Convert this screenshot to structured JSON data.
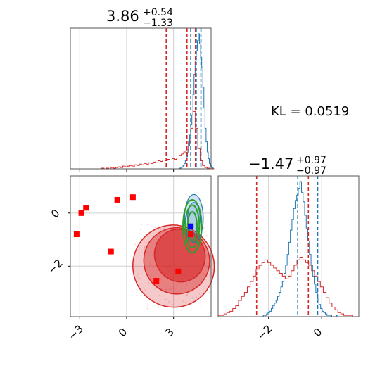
{
  "chart_data": {
    "type": "corner",
    "panels": [
      {
        "id": "top-left-histogram",
        "type": "histogram",
        "title": {
          "median": "3.86",
          "plus": "+0.54",
          "minus": "−1.33"
        },
        "x_range": [
          -3.6,
          5.4
        ],
        "x_ticks": [
          -3,
          0,
          3
        ],
        "vertical_lines": {
          "red": [
            2.53,
            3.86,
            4.4
          ],
          "blue": [
            4.1,
            4.45,
            4.75
          ]
        },
        "red_hist": {
          "x_edges_start": -1.6,
          "bin_width": 0.15,
          "counts": [
            1,
            0,
            1,
            0,
            2,
            1,
            2,
            3,
            2,
            4,
            3,
            4,
            5,
            4,
            6,
            5,
            7,
            6,
            8,
            7,
            9,
            8,
            10,
            9,
            12,
            11,
            13,
            12,
            14,
            13,
            15,
            14,
            16,
            20,
            22,
            25,
            28,
            40,
            60,
            85,
            60,
            30,
            12,
            5,
            2,
            1,
            0,
            0
          ]
        },
        "blue_hist": {
          "x_edges_start": 3.4,
          "bin_width": 0.07,
          "counts": [
            1,
            2,
            3,
            5,
            8,
            12,
            18,
            25,
            35,
            50,
            65,
            80,
            110,
            140,
            160,
            175,
            190,
            200,
            185,
            165,
            150,
            120,
            90,
            60,
            40,
            25,
            15,
            8,
            4,
            2,
            1
          ]
        }
      },
      {
        "id": "top-right-annotation",
        "type": "text",
        "text": "KL = 0.0519"
      },
      {
        "id": "bottom-left-scatter",
        "type": "scatter-contour",
        "x_range": [
          -3.6,
          5.4
        ],
        "y_range": [
          -3.9,
          1.4
        ],
        "x_ticks": [
          "−3",
          "0",
          "3"
        ],
        "y_ticks": [
          "0",
          "−2"
        ],
        "x_tick_values": [
          -3,
          0,
          3
        ],
        "y_tick_values": [
          0,
          -2
        ],
        "red_points": [
          {
            "x": -3.2,
            "y": -0.8
          },
          {
            "x": -2.9,
            "y": 0.0
          },
          {
            "x": -2.6,
            "y": 0.2
          },
          {
            "x": -1.0,
            "y": -1.45
          },
          {
            "x": -0.6,
            "y": 0.5
          },
          {
            "x": 0.4,
            "y": 0.6
          },
          {
            "x": 1.9,
            "y": -2.55
          },
          {
            "x": 3.3,
            "y": -2.2
          },
          {
            "x": 4.1,
            "y": -0.8
          }
        ],
        "blue_point": {
          "x": 4.1,
          "y": -0.5
        },
        "red_contours": [
          {
            "cx": 3.0,
            "cy": -2.0,
            "rx": 2.6,
            "ry": 1.55,
            "opacity": 0.25
          },
          {
            "cx": 3.2,
            "cy": -1.8,
            "rx": 2.1,
            "ry": 1.25,
            "opacity": 0.45
          },
          {
            "cx": 3.4,
            "cy": -1.6,
            "rx": 1.6,
            "ry": 1.0,
            "opacity": 0.6
          }
        ],
        "green_contours": [
          {
            "cx": 4.2,
            "cy": -0.5,
            "rx": 0.6,
            "ry": 1.0
          },
          {
            "cx": 4.2,
            "cy": -0.5,
            "rx": 0.45,
            "ry": 0.8
          },
          {
            "cx": 4.2,
            "cy": -0.5,
            "rx": 0.3,
            "ry": 0.55
          }
        ],
        "blue_contours": [
          {
            "cx": 4.3,
            "cy": -0.2,
            "rx": 0.6,
            "ry": 0.9
          },
          {
            "cx": 4.3,
            "cy": -0.2,
            "rx": 0.4,
            "ry": 0.6
          }
        ]
      },
      {
        "id": "bottom-right-histogram",
        "type": "histogram",
        "title": {
          "median": "−1.47",
          "plus": "+0.97",
          "minus": "−0.97"
        },
        "x_range": [
          -3.9,
          1.4
        ],
        "x_ticks": [
          "−2",
          "0"
        ],
        "x_tick_values": [
          -2,
          0
        ],
        "vertical_lines": {
          "red": [
            -2.45,
            -0.5
          ],
          "blue": [
            -0.9,
            -0.15
          ]
        },
        "red_hist": {
          "x_edges_start": -3.9,
          "bin_width": 0.11,
          "counts": [
            1,
            1,
            2,
            3,
            4,
            6,
            8,
            12,
            15,
            18,
            22,
            26,
            30,
            35,
            38,
            40,
            42,
            40,
            38,
            36,
            34,
            32,
            30,
            28,
            30,
            34,
            38,
            42,
            44,
            42,
            40,
            38,
            34,
            30,
            26,
            22,
            18,
            14,
            10,
            7,
            5,
            3,
            2,
            1,
            1,
            1,
            0,
            0
          ]
        },
        "blue_hist": {
          "x_edges_start": -2.2,
          "bin_width": 0.06,
          "counts": [
            1,
            1,
            2,
            3,
            4,
            6,
            8,
            10,
            12,
            15,
            18,
            22,
            26,
            32,
            38,
            46,
            55,
            64,
            72,
            80,
            86,
            90,
            95,
            100,
            92,
            85,
            75,
            65,
            56,
            46,
            38,
            30,
            24,
            18,
            13,
            9,
            6,
            4,
            3,
            2,
            1,
            1,
            1,
            0,
            0,
            0,
            1
          ]
        }
      }
    ]
  },
  "labels": {
    "kl": "KL = 0.0519"
  }
}
